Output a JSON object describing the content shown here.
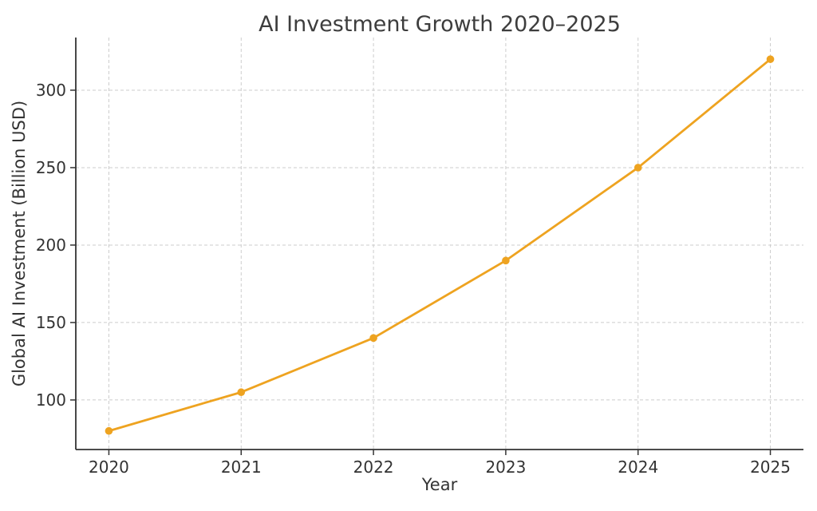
{
  "page": {
    "background_color": "#ffffff"
  },
  "chart_data": {
    "type": "line",
    "title": "AI Investment Growth 2020–2025",
    "xlabel": "Year",
    "ylabel": "Global AI Investment (Billion USD)",
    "x": [
      2020,
      2021,
      2022,
      2023,
      2024,
      2025
    ],
    "series": [
      {
        "name": "Global AI Investment",
        "values": [
          80,
          105,
          140,
          190,
          250,
          320
        ]
      }
    ],
    "xticks": [
      2020,
      2021,
      2022,
      2023,
      2024,
      2025
    ],
    "xtick_labels": [
      "2020",
      "2021",
      "2022",
      "2023",
      "2024",
      "2025"
    ],
    "yticks": [
      100,
      150,
      200,
      250,
      300
    ],
    "ytick_labels": [
      "100",
      "150",
      "200",
      "250",
      "300"
    ],
    "xlim": [
      2019.75,
      2025.25
    ],
    "ylim": [
      68,
      334
    ],
    "grid": true,
    "grid_style": "dashed",
    "legend_position": "none",
    "colors": {
      "line": "#EEA320",
      "marker": "#EEA320",
      "grid": "#CCCCCC",
      "spine": "#333333",
      "tick": "#333333",
      "text": "#333333",
      "title": "#3D3D3D"
    }
  }
}
